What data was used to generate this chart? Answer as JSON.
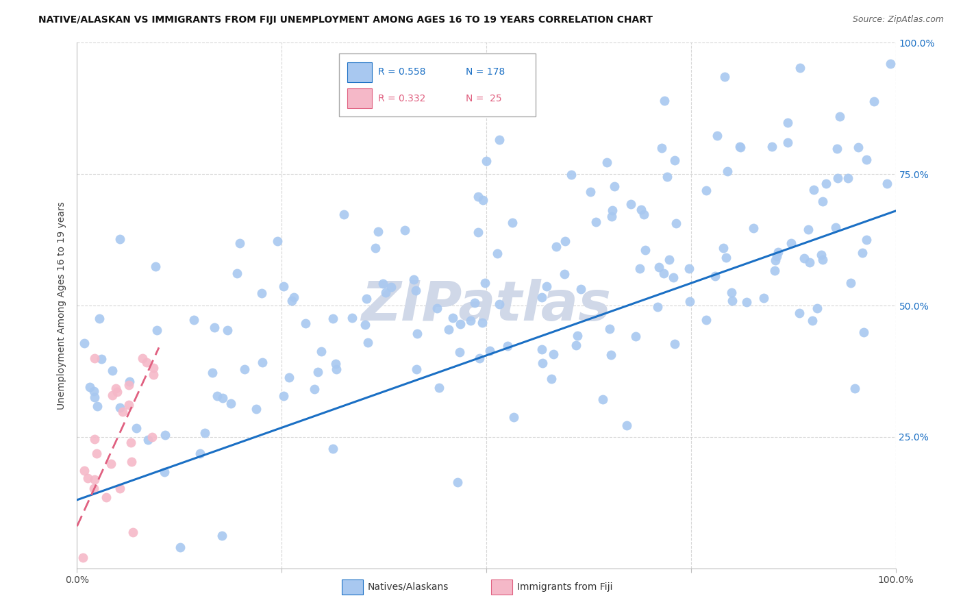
{
  "title": "NATIVE/ALASKAN VS IMMIGRANTS FROM FIJI UNEMPLOYMENT AMONG AGES 16 TO 19 YEARS CORRELATION CHART",
  "source": "Source: ZipAtlas.com",
  "ylabel": "Unemployment Among Ages 16 to 19 years",
  "xticklabels": [
    "0.0%",
    "",
    "",
    "",
    "100.0%"
  ],
  "yticklabels": [
    "",
    "25.0%",
    "50.0%",
    "75.0%",
    "100.0%"
  ],
  "blue_color": "#a8c8f0",
  "pink_color": "#f5b8c8",
  "blue_line_color": "#1a6fc4",
  "pink_line_color": "#e06080",
  "blue_r": "0.558",
  "blue_n": "178",
  "pink_r": "0.332",
  "pink_n": " 25",
  "background_color": "#ffffff",
  "grid_color": "#cccccc",
  "tick_color_y": "#1a6fc4",
  "tick_color_x": "#444444",
  "watermark_color": "#d0d8e8",
  "seed": 12345
}
